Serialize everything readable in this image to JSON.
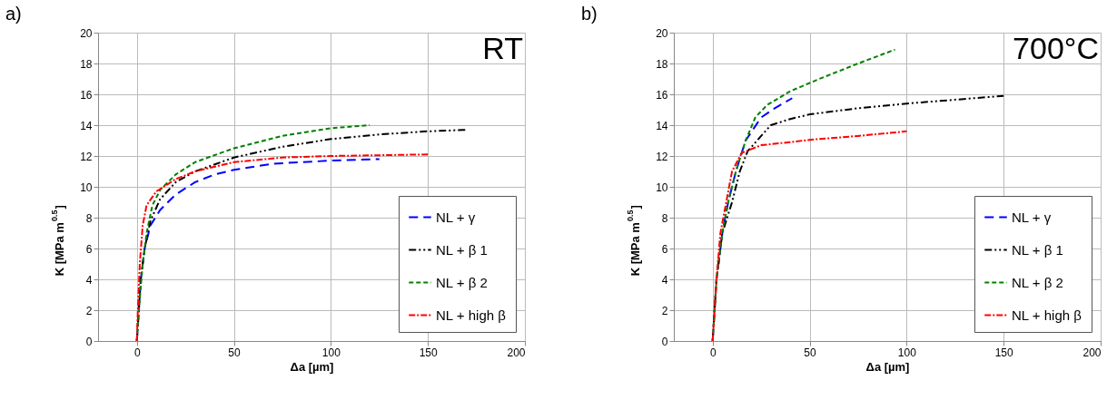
{
  "chart_data": [
    {
      "type": "line",
      "title": "a)",
      "xlabel": "Δa [µm]",
      "ylabel": "K [MPa m$^{0.5}$]",
      "annotations": [
        "RT"
      ],
      "xlim": [
        -20,
        200
      ],
      "xticks": [
        0,
        50,
        100,
        150,
        200
      ],
      "ylim": [
        0,
        20
      ],
      "yticks": [
        0,
        2,
        4,
        6,
        8,
        10,
        12,
        14,
        16,
        18,
        20
      ],
      "grid": true,
      "legend": "bottom right",
      "series": [
        {
          "name": "NL + γ",
          "color": "#0000ff",
          "line_style": "dashed",
          "x": [
            0,
            1,
            2,
            4,
            7,
            12,
            20,
            30,
            40,
            50,
            70,
            100,
            125
          ],
          "values": [
            0,
            2,
            4,
            6,
            7.5,
            8.5,
            9.5,
            10.3,
            10.8,
            11.1,
            11.5,
            11.7,
            11.8
          ]
        },
        {
          "name": "NL + β 1",
          "color": "#000000",
          "line_style": "dashdotdot",
          "x": [
            0,
            1,
            2,
            4,
            7,
            12,
            20,
            30,
            50,
            75,
            100,
            125,
            150,
            170
          ],
          "values": [
            0,
            2,
            4,
            6,
            7.8,
            9.2,
            10.3,
            11,
            11.9,
            12.6,
            13.1,
            13.4,
            13.6,
            13.7
          ]
        },
        {
          "name": "NL + β 2",
          "color": "#008000",
          "line_style": "shortdash",
          "x": [
            0,
            1,
            3,
            5,
            8,
            12,
            20,
            30,
            50,
            75,
            100,
            120
          ],
          "values": [
            0,
            2,
            5,
            7,
            8.8,
            9.8,
            10.8,
            11.6,
            12.5,
            13.3,
            13.8,
            14
          ]
        },
        {
          "name": "NL + high β",
          "color": "#ff0000",
          "line_style": "dashdot",
          "x": [
            0,
            0.5,
            1.5,
            3,
            5,
            10,
            20,
            30,
            50,
            75,
            100,
            150
          ],
          "values": [
            0,
            2,
            5,
            7.5,
            8.8,
            9.7,
            10.5,
            11,
            11.6,
            11.9,
            12,
            12.1
          ]
        }
      ]
    },
    {
      "type": "line",
      "title": "b)",
      "xlabel": "Δa [µm]",
      "ylabel": "K [MPa m$^{0.5}$]",
      "annotations": [
        "700°C"
      ],
      "xlim": [
        -20,
        200
      ],
      "xticks": [
        0,
        50,
        100,
        150,
        200
      ],
      "ylim": [
        0,
        20
      ],
      "yticks": [
        0,
        2,
        4,
        6,
        8,
        10,
        12,
        14,
        16,
        18,
        20
      ],
      "grid": true,
      "legend": "bottom right",
      "series": [
        {
          "name": "NL + γ",
          "color": "#0000ff",
          "line_style": "dashed",
          "x": [
            0,
            2,
            5,
            8,
            12,
            17,
            25,
            32,
            41
          ],
          "values": [
            0,
            4,
            7,
            9,
            11,
            13,
            14.5,
            15.1,
            15.75
          ]
        },
        {
          "name": "NL + β 1",
          "color": "#000000",
          "line_style": "dashdotdot",
          "x": [
            0,
            2,
            5,
            10,
            14,
            18,
            25,
            30,
            40,
            50,
            75,
            100,
            150
          ],
          "values": [
            0,
            4,
            7,
            9,
            11,
            12.3,
            13.3,
            14,
            14.4,
            14.7,
            15.1,
            15.4,
            15.9
          ]
        },
        {
          "name": "NL + β 2",
          "color": "#008000",
          "line_style": "shortdash",
          "x": [
            0,
            2,
            5,
            8,
            12,
            17,
            22,
            28,
            40,
            55,
            75,
            94
          ],
          "values": [
            0,
            4,
            7,
            9,
            11,
            13,
            14.5,
            15.3,
            16.2,
            17,
            18,
            18.9
          ]
        },
        {
          "name": "NL + high β",
          "color": "#ff0000",
          "line_style": "dashdot",
          "x": [
            0,
            2,
            4,
            7,
            10,
            15,
            25,
            40,
            50,
            75,
            100
          ],
          "values": [
            0,
            4,
            7,
            9,
            11,
            12.2,
            12.7,
            12.9,
            13.05,
            13.3,
            13.6
          ]
        }
      ]
    }
  ]
}
